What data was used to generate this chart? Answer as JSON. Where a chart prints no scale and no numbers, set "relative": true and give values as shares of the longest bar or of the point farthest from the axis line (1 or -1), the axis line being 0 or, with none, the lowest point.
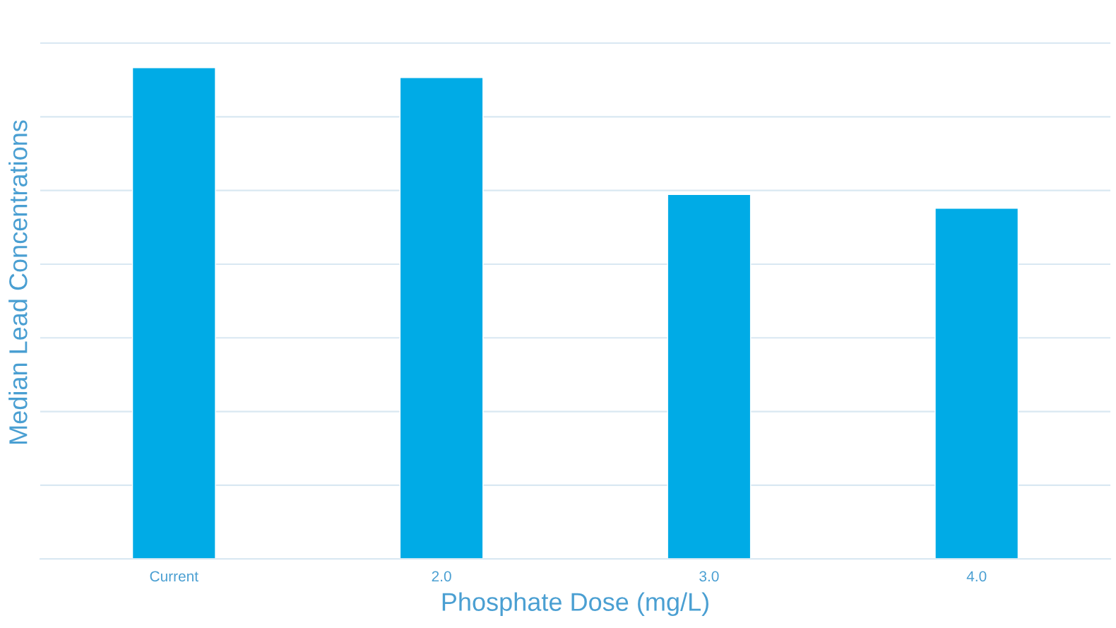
{
  "chart_data": {
    "type": "bar",
    "relative": true,
    "xlabel": "Phosphate Dose (mg/L)",
    "ylabel": "Median Lead Concentrations",
    "categories": [
      "Current",
      "2.0",
      "3.0",
      "4.0"
    ],
    "values": [
      1,
      0.98,
      0.742,
      0.714
    ],
    "color": "#00abe6",
    "grid": "y"
  }
}
